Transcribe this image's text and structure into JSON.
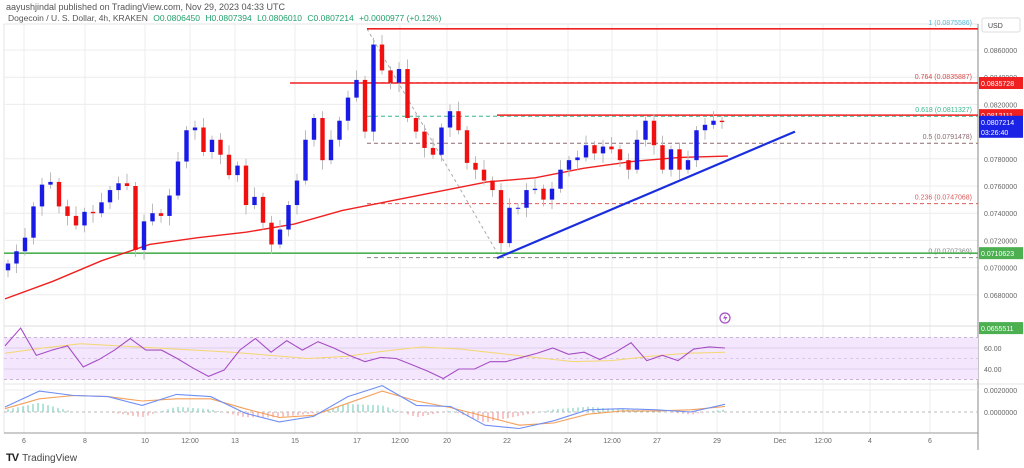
{
  "header": {
    "published": "aayushjindal published on TradingView.com, Nov 29, 2023 04:33 UTC",
    "symbol": "Dogecoin / U. S. Dollar, 4h, KRAKEN",
    "open": "O0.0806450",
    "high": "H0.0807394",
    "low": "L0.0806010",
    "close": "C0.0807214",
    "change": "+0.0000977 (+0.12%)"
  },
  "footer": {
    "brand": "TradingView"
  },
  "colors": {
    "up": "#1a1ae6",
    "down": "#f01010",
    "ma": "#f02020",
    "support": "#4caf50",
    "trendline": "#1a2ee0",
    "rsi": "#a64dc4",
    "rsi_ma": "#f5d76e",
    "macd": "#6f8ff5",
    "signal": "#f5a05a"
  },
  "chart_data": {
    "type": "candlestick",
    "currency": "USD",
    "price_axis": [
      "0.0860000",
      "0.0840000",
      "0.0820000",
      "0.0780000",
      "0.0760000",
      "0.0740000",
      "0.0720000",
      "0.0700000",
      "0.0680000"
    ],
    "price_range": [
      0.065,
      0.0882
    ],
    "time_axis": [
      "6",
      "8",
      "10",
      "12:00",
      "13",
      "15",
      "17",
      "12:00",
      "20",
      "22",
      "24",
      "12:00",
      "27",
      "29",
      "Dec",
      "12:00",
      "4",
      "6"
    ],
    "closes": [
      0.0703,
      0.0712,
      0.0722,
      0.0745,
      0.0761,
      0.0763,
      0.0745,
      0.0738,
      0.0731,
      0.0741,
      0.074,
      0.0748,
      0.0757,
      0.0762,
      0.076,
      0.0713,
      0.0734,
      0.074,
      0.0738,
      0.0753,
      0.0778,
      0.0801,
      0.0803,
      0.0785,
      0.0794,
      0.0783,
      0.0768,
      0.0775,
      0.0746,
      0.0752,
      0.0733,
      0.0717,
      0.0728,
      0.0746,
      0.0764,
      0.0794,
      0.081,
      0.0779,
      0.0794,
      0.0808,
      0.0825,
      0.0838,
      0.08,
      0.0864,
      0.0845,
      0.0836,
      0.0846,
      0.081,
      0.08,
      0.0788,
      0.0783,
      0.0803,
      0.0815,
      0.0801,
      0.0777,
      0.0772,
      0.0764,
      0.0757,
      0.0718,
      0.0744,
      0.0744,
      0.0757,
      0.0758,
      0.075,
      0.0758,
      0.0772,
      0.0779,
      0.0781,
      0.079,
      0.0784,
      0.0789,
      0.0787,
      0.0779,
      0.0772,
      0.0794,
      0.0808,
      0.079,
      0.0772,
      0.0787,
      0.0772,
      0.0779,
      0.0801,
      0.0805,
      0.0808,
      0.0807
    ],
    "moving_average": [
      0.0677,
      0.069,
      0.0705,
      0.0717,
      0.0722,
      0.0726,
      0.0732,
      0.0742,
      0.0749,
      0.0756,
      0.0763,
      0.0766,
      0.0773,
      0.0778,
      0.0781,
      0.0782
    ],
    "levels": [
      {
        "price": 0.0875586,
        "tag": "",
        "kind": "resistance"
      },
      {
        "price": 0.0835728,
        "tag": "0.0835728",
        "kind": "resistance"
      },
      {
        "price": 0.0812111,
        "tag": "0.0812111",
        "kind": "resistance"
      },
      {
        "price": 0.0710623,
        "tag": "0.0710623",
        "kind": "support"
      }
    ],
    "fibonacci": [
      {
        "label": "1 (0.0875586)",
        "price": 0.0875586,
        "color": "#5bb8d8"
      },
      {
        "label": "0.764 (0.0835887)",
        "price": 0.0835887,
        "color": "#d84a4a"
      },
      {
        "label": "0.618 (0.0811327)",
        "price": 0.0811327,
        "color": "#36b58c"
      },
      {
        "label": "0.5 (0.0791478)",
        "price": 0.0791478,
        "color": "#8a6a70"
      },
      {
        "label": "0.236 (0.0747068)",
        "price": 0.0747068,
        "color": "#e05a5a"
      },
      {
        "label": "0 (0.0707369)",
        "price": 0.0707369,
        "color": "#888888"
      }
    ],
    "trendline": {
      "from": 0.0707,
      "to": 0.08
    },
    "last_price": {
      "value": "0.0807214",
      "countdown": "03:26:40"
    },
    "low_tag": "0.0655511",
    "rsi": {
      "axis": [
        "60.00",
        "40.00"
      ],
      "values": [
        62,
        79,
        53,
        58,
        62,
        42,
        49,
        58,
        69,
        58,
        58,
        50,
        41,
        33,
        39,
        58,
        69,
        56,
        67,
        58,
        66,
        60,
        53,
        47,
        51,
        50,
        44,
        38,
        31,
        40,
        40,
        47,
        47,
        51,
        55,
        60,
        54,
        56,
        49,
        56,
        65,
        48,
        53,
        48,
        59,
        61,
        60
      ],
      "ma": [
        55,
        60,
        64,
        62,
        60,
        58,
        56,
        53,
        50,
        52,
        57,
        61,
        59,
        55,
        51,
        47,
        48,
        52,
        55,
        56
      ]
    },
    "macd": {
      "axis": [
        "0.0020000",
        "0.0000000"
      ],
      "macd": [
        0.00045,
        0.0019,
        0.0015,
        0.0014,
        0.0006,
        0.0016,
        0.0014,
        -0.0001,
        -0.0009,
        -0.0004,
        0.0014,
        0.0024,
        0.0006,
        0.0005,
        -0.0012,
        -0.0015,
        -0.0008,
        0.0002,
        0.0003,
        0.0002,
        0.0,
        0.0007
      ],
      "signal": [
        0.0003,
        0.0012,
        0.0015,
        0.0014,
        0.001,
        0.0012,
        0.0012,
        0.0003,
        -0.0005,
        -0.0003,
        0.0008,
        0.0019,
        0.001,
        0.0004,
        -0.0004,
        -0.0012,
        -0.001,
        -0.0002,
        0.0001,
        0.0001,
        0.0002,
        0.0005
      ]
    }
  }
}
